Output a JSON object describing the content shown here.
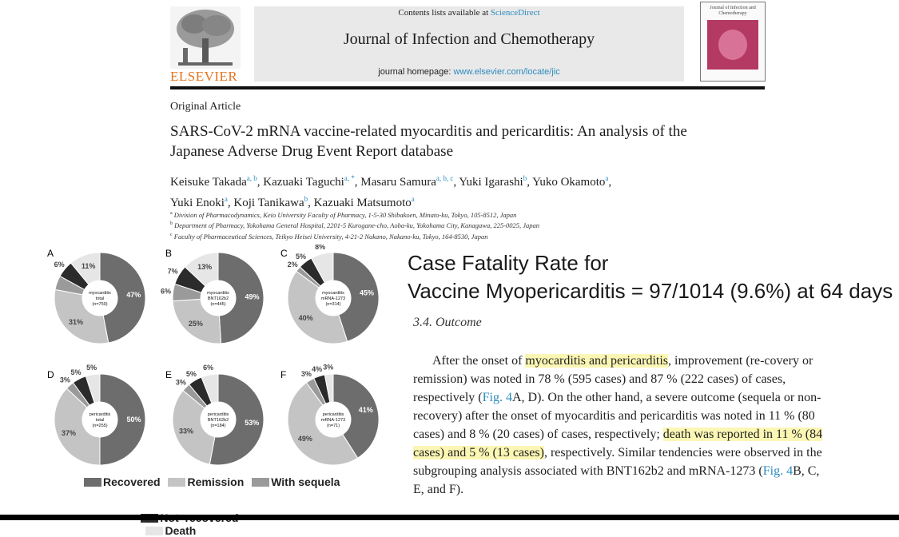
{
  "journal": {
    "publisher": "ELSEVIER",
    "contents_prefix": "Contents lists available at",
    "contents_link": "ScienceDirect",
    "title": "Journal of Infection and Chemotherapy",
    "homepage_prefix": "journal homepage:",
    "homepage_url": "www.elsevier.com/locate/jic",
    "cover_title": "Journal of Infection and Chemotherapy"
  },
  "article": {
    "type": "Original Article",
    "title": "SARS-CoV-2 mRNA vaccine-related myocarditis and pericarditis: An analysis of the Japanese Adverse Drug Event Report database",
    "authors": [
      {
        "name": "Keisuke Takada",
        "sup": "a, b",
        "sep": ","
      },
      {
        "name": "Kazuaki Taguchi",
        "sup": "a, *",
        "sep": ","
      },
      {
        "name": "Masaru Samura",
        "sup": "a, b, c",
        "sep": ","
      },
      {
        "name": "Yuki Igarashi",
        "sup": "b",
        "sep": ","
      },
      {
        "name": "Yuko Okamoto",
        "sup": "a",
        "sep": ","
      },
      {
        "name": "Yuki Enoki",
        "sup": "a",
        "sep": ","
      },
      {
        "name": "Koji Tanikawa",
        "sup": "b",
        "sep": ","
      },
      {
        "name": "Kazuaki Matsumoto",
        "sup": "a",
        "sep": ""
      }
    ],
    "affiliations": [
      {
        "sup": "a",
        "text": "Division of Pharmacodynamics, Keio University Faculty of Pharmacy, 1-5-30 Shibakoen, Minato-ku, Tokyo, 105-8512, Japan"
      },
      {
        "sup": "b",
        "text": "Department of Pharmacy, Yokohama General Hospital, 2201-5 Kurogane-cho, Aoba-ku, Yokohama City, Kanagawa, 225-0025, Japan"
      },
      {
        "sup": "c",
        "text": "Faculty of Pharmaceutical Sciences, Teikyo Heisei University, 4-21-2 Nakano, Nakano-ku, Tokyo, 164-8530, Japan"
      }
    ]
  },
  "headline": {
    "line1": "Case Fatality Rate for",
    "line2": "Vaccine Myopericarditis = 97/1014 (9.6%) at 64 days"
  },
  "section": {
    "heading": "3.4.  Outcome",
    "p1_a": "After the onset of ",
    "p1_hl1": "myocarditis and pericarditis",
    "p1_b": ", improvement (re-covery or remission) was noted in 78 % (595 cases) and 87 % (222 cases) of cases, respectively (",
    "fig_ref1": "Fig. 4",
    "p1_c": "A, D). On the other hand, a severe outcome (sequela or non-recovery) after the onset of myocarditis and pericarditis was noted in 11 % (80 cases) and 8 % (20 cases) of cases, respectively; ",
    "p1_hl2": "death was reported in 11 % (84 cases) and 5 % (13 cases)",
    "p1_d": ", respectively. Similar tendencies were observed in the subgrouping analysis associated with BNT162b2 and mRNA-1273 (",
    "fig_ref2": "Fig. 4",
    "p1_e": "B, C, E, and F)."
  },
  "colors": {
    "recovered": "#6d6d6d",
    "remission": "#c4c4c4",
    "sequela": "#9a9a9a",
    "not_recovered": "#2b2b2b",
    "death": "#e6e6e6"
  },
  "chart_data": [
    {
      "type": "pie",
      "panel": "A",
      "center": [
        "myocarditis",
        "total",
        "(n=759)"
      ],
      "categories": [
        "Recovered",
        "Remission",
        "With sequela",
        "Not recovered",
        "Death"
      ],
      "values": [
        47,
        31,
        5,
        6,
        11
      ],
      "labels": [
        "47%",
        "31%",
        "",
        "6%",
        "11%"
      ]
    },
    {
      "type": "pie",
      "panel": "B",
      "center": [
        "myocarditis",
        "BNT162b2",
        "(n=445)"
      ],
      "categories": [
        "Recovered",
        "Remission",
        "With sequela",
        "Not recovered",
        "Death"
      ],
      "values": [
        49,
        25,
        6,
        7,
        13
      ],
      "labels": [
        "49%",
        "25%",
        "6%",
        "7%",
        "13%"
      ]
    },
    {
      "type": "pie",
      "panel": "C",
      "center": [
        "myocarditis",
        "mRNA-1273",
        "(n=314)"
      ],
      "categories": [
        "Recovered",
        "Remission",
        "With sequela",
        "Not recovered",
        "Death"
      ],
      "values": [
        45,
        40,
        2,
        5,
        8
      ],
      "labels": [
        "45%",
        "40%",
        "2%",
        "5%",
        "8%"
      ]
    },
    {
      "type": "pie",
      "panel": "D",
      "center": [
        "pericarditis",
        "total",
        "(n=255)"
      ],
      "categories": [
        "Recovered",
        "Remission",
        "With sequela",
        "Not recovered",
        "Death"
      ],
      "values": [
        50,
        37,
        3,
        5,
        5
      ],
      "labels": [
        "50%",
        "37%",
        "3%",
        "5%",
        "5%"
      ]
    },
    {
      "type": "pie",
      "panel": "E",
      "center": [
        "pericarditis",
        "BNT162b2",
        "(n=184)"
      ],
      "categories": [
        "Recovered",
        "Remission",
        "With sequela",
        "Not recovered",
        "Death"
      ],
      "values": [
        53,
        33,
        3,
        5,
        6
      ],
      "labels": [
        "53%",
        "33%",
        "3%",
        "5%",
        "6%"
      ]
    },
    {
      "type": "pie",
      "panel": "F",
      "center": [
        "pericarditis",
        "mRNA-1273",
        "(n=71)"
      ],
      "categories": [
        "Recovered",
        "Remission",
        "With sequela",
        "Not recovered",
        "Death"
      ],
      "values": [
        41,
        49,
        3,
        4,
        3
      ],
      "labels": [
        "41%",
        "49%",
        "3%",
        "4%",
        "3%"
      ]
    }
  ],
  "legend": {
    "items": [
      "Recovered",
      "Remission",
      "With sequela",
      "Not  recovered",
      "Death"
    ]
  }
}
